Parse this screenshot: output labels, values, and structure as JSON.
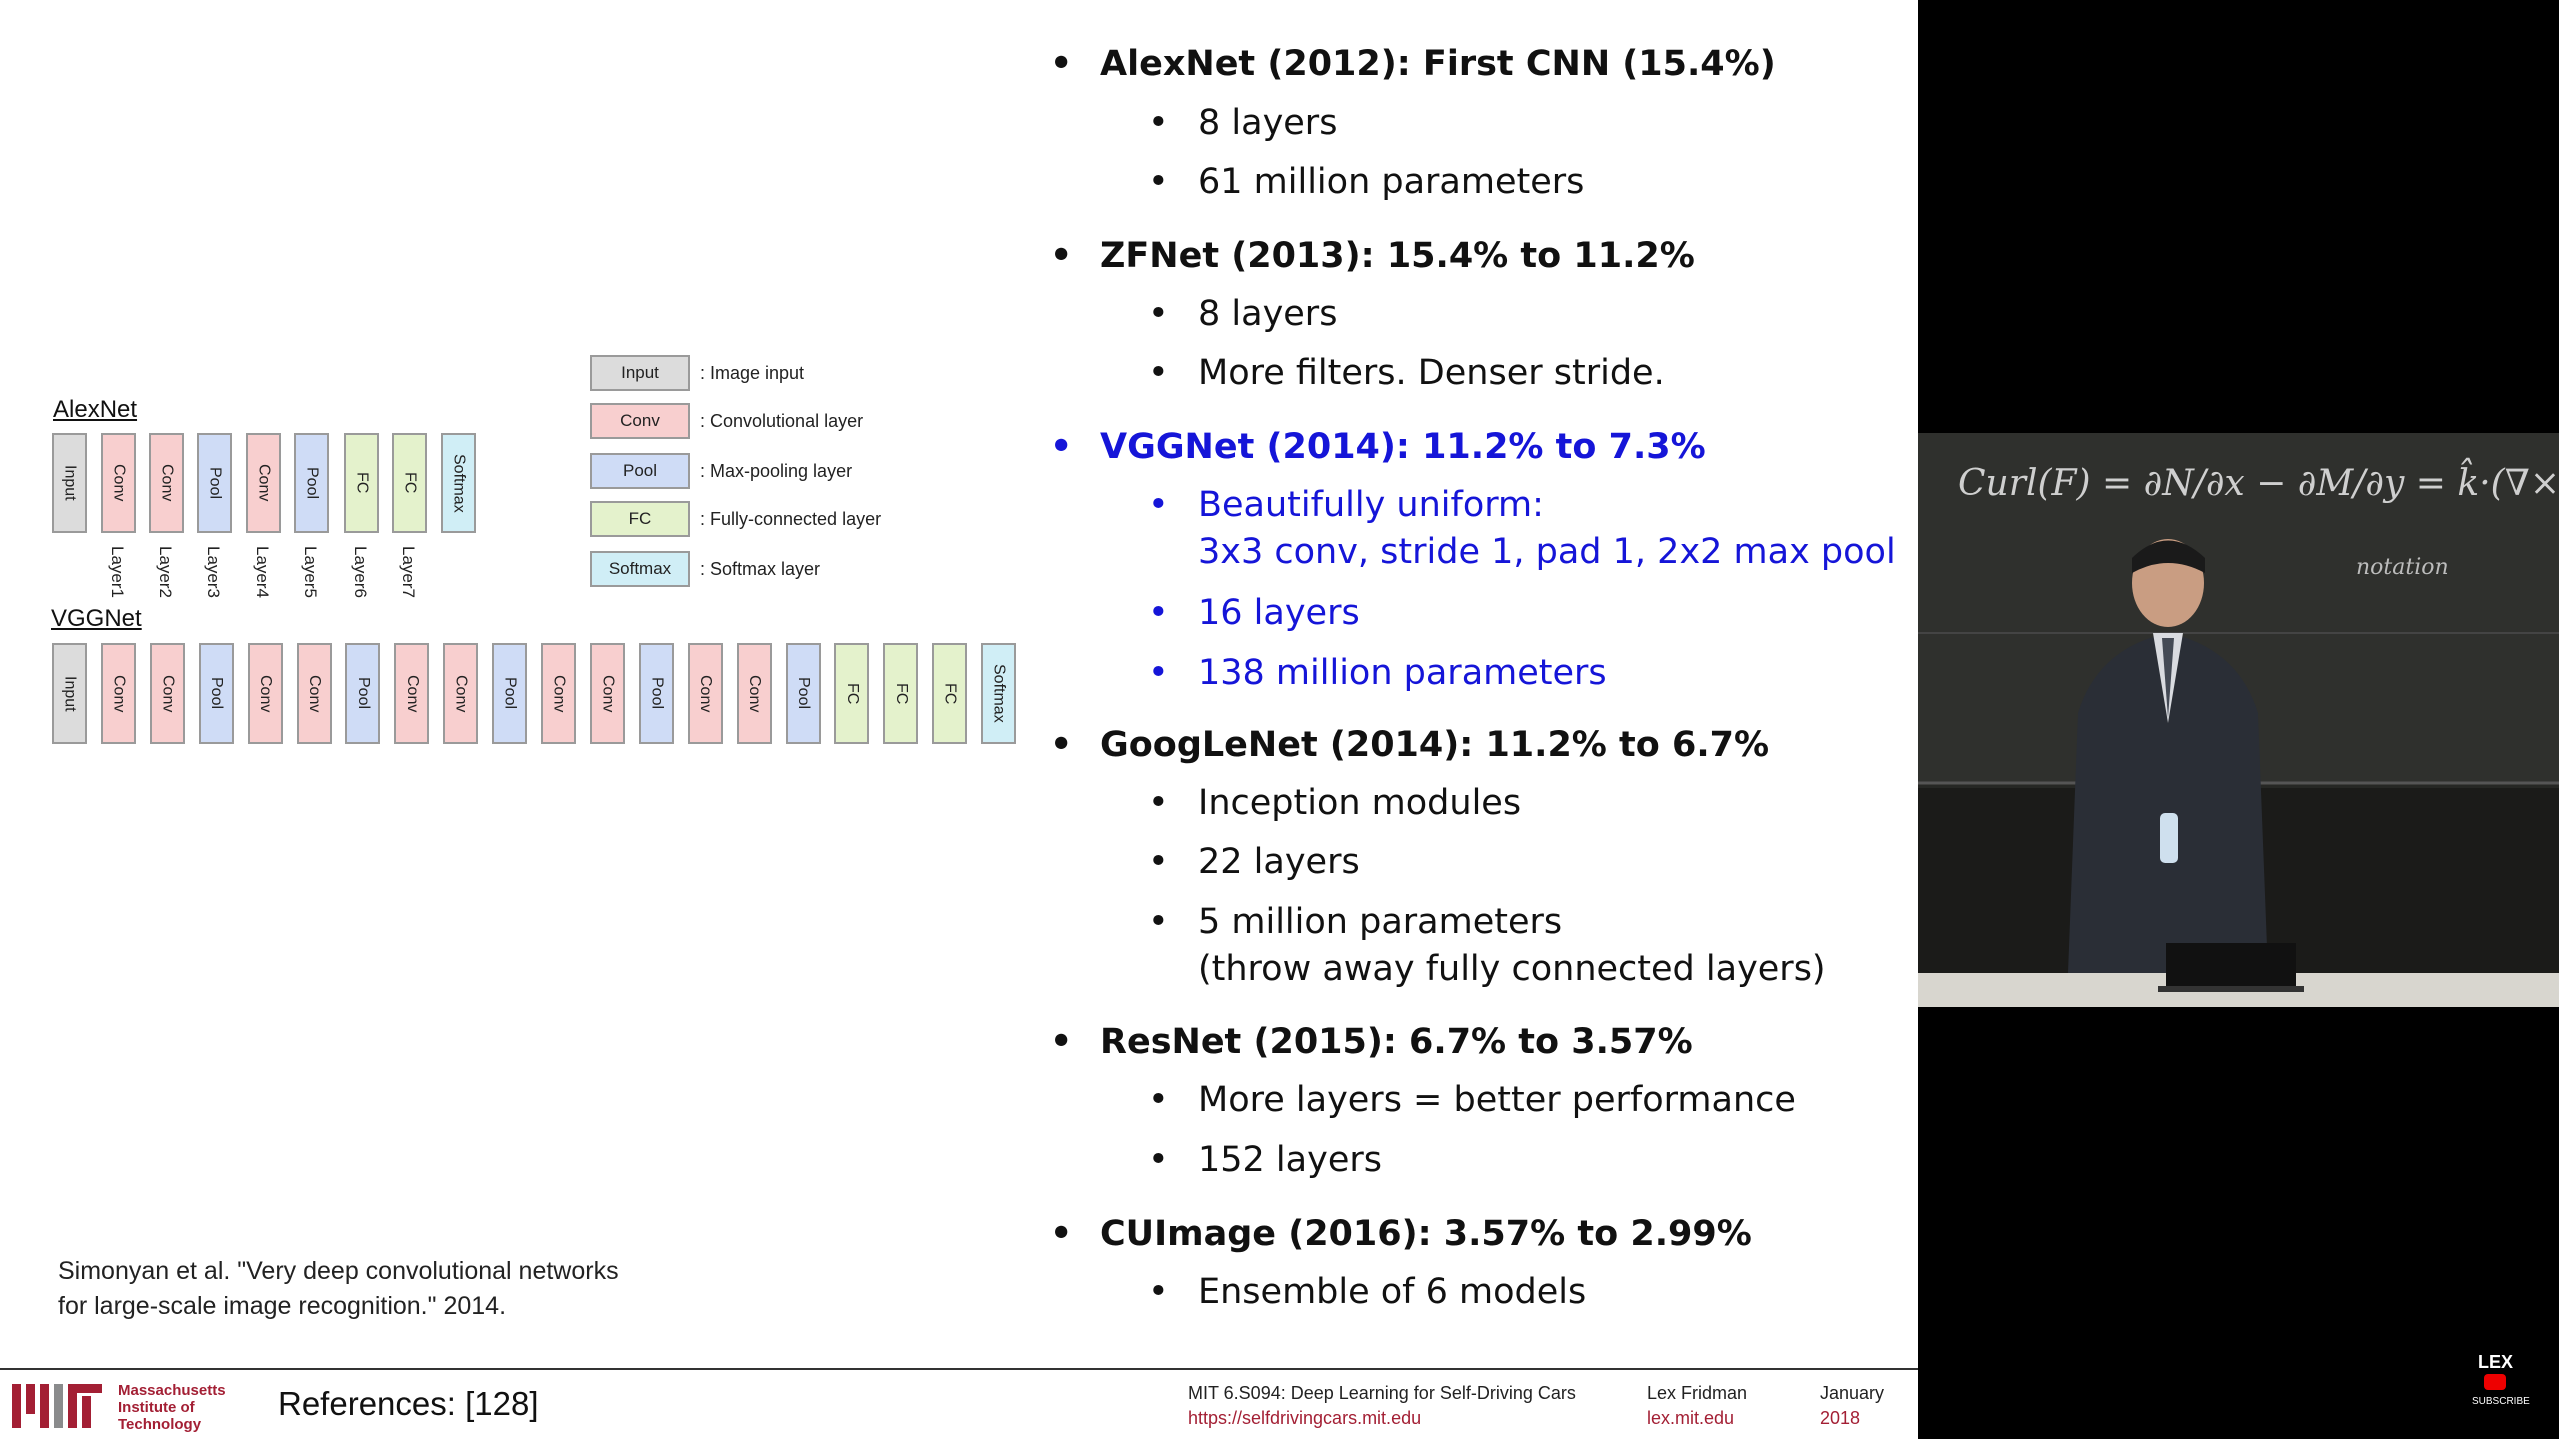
{
  "legend": [
    {
      "box": "Input",
      "desc": ": Image input",
      "color": "gray"
    },
    {
      "box": "Conv",
      "desc": ": Convolutional layer",
      "color": "red"
    },
    {
      "box": "Pool",
      "desc": ": Max-pooling layer",
      "color": "blue"
    },
    {
      "box": "FC",
      "desc": ": Fully-connected layer",
      "color": "green"
    },
    {
      "box": "Softmax",
      "desc": ": Softmax layer",
      "color": "cyan"
    }
  ],
  "alexnet": {
    "label": "AlexNet",
    "layers": [
      "Input",
      "Conv",
      "Conv",
      "Pool",
      "Conv",
      "Pool",
      "FC",
      "FC",
      "Softmax"
    ],
    "layer_labels": [
      "Layer1",
      "Layer2",
      "Layer3",
      "Layer4",
      "Layer5",
      "Layer6",
      "Layer7"
    ]
  },
  "vggnet": {
    "label": "VGGNet",
    "layers": [
      "Input",
      "Conv",
      "Conv",
      "Pool",
      "Conv",
      "Conv",
      "Pool",
      "Conv",
      "Conv",
      "Pool",
      "Conv",
      "Conv",
      "Pool",
      "Conv",
      "Conv",
      "Pool",
      "FC",
      "FC",
      "FC",
      "Softmax"
    ]
  },
  "citation": {
    "line1": "Simonyan et al. \"Very deep convolutional networks",
    "line2": "for large-scale image recognition.\" 2014."
  },
  "bullets": [
    {
      "title": "AlexNet (2012): First CNN (15.4%)",
      "sub": [
        "8 layers",
        "61 million parameters"
      ]
    },
    {
      "title": "ZFNet (2013): 15.4% to 11.2%",
      "sub": [
        "8 layers",
        "More filters. Denser stride."
      ]
    },
    {
      "title": "VGGNet (2014): 11.2% to 7.3%",
      "highlight": true,
      "sub": [
        "Beautifully uniform:\n3x3 conv, stride 1, pad 1, 2x2 max pool",
        "16 layers",
        "138 million parameters"
      ]
    },
    {
      "title": "GoogLeNet (2014): 11.2% to 6.7%",
      "sub": [
        "Inception modules",
        "22 layers",
        "5 million parameters\n(throw away fully connected layers)"
      ]
    },
    {
      "title": "ResNet (2015): 6.7% to 3.57%",
      "sub": [
        "More layers = better performance",
        "152 layers"
      ]
    },
    {
      "title": "CUImage (2016): 3.57% to 2.99%",
      "sub": [
        "Ensemble of 6 models"
      ]
    }
  ],
  "footer": {
    "mit_line1": "Massachusetts",
    "mit_line2": "Institute of",
    "mit_line3": "Technology",
    "references": "References: [128]",
    "course": "MIT 6.S094: Deep Learning for Self-Driving Cars",
    "course_url": "https://selfdrivingcars.mit.edu",
    "author": "Lex Fridman",
    "author_url": "lex.mit.edu",
    "month": "January",
    "year": "2018"
  },
  "video": {
    "channel": "LEX",
    "subscribe": "SUBSCRIBE",
    "board_text": "Curl(F) = ∂N/∂x − ∂M/∂y = k̂·(∇×F)",
    "board_note": "notation"
  },
  "colors": {
    "gray": "#dcdcdc",
    "red": "#f8cfcf",
    "blue": "#cfdcf6",
    "green": "#e4f2cc",
    "cyan": "#d0eef6",
    "highlight": "#1515d8",
    "mit_red": "#a31f34"
  }
}
